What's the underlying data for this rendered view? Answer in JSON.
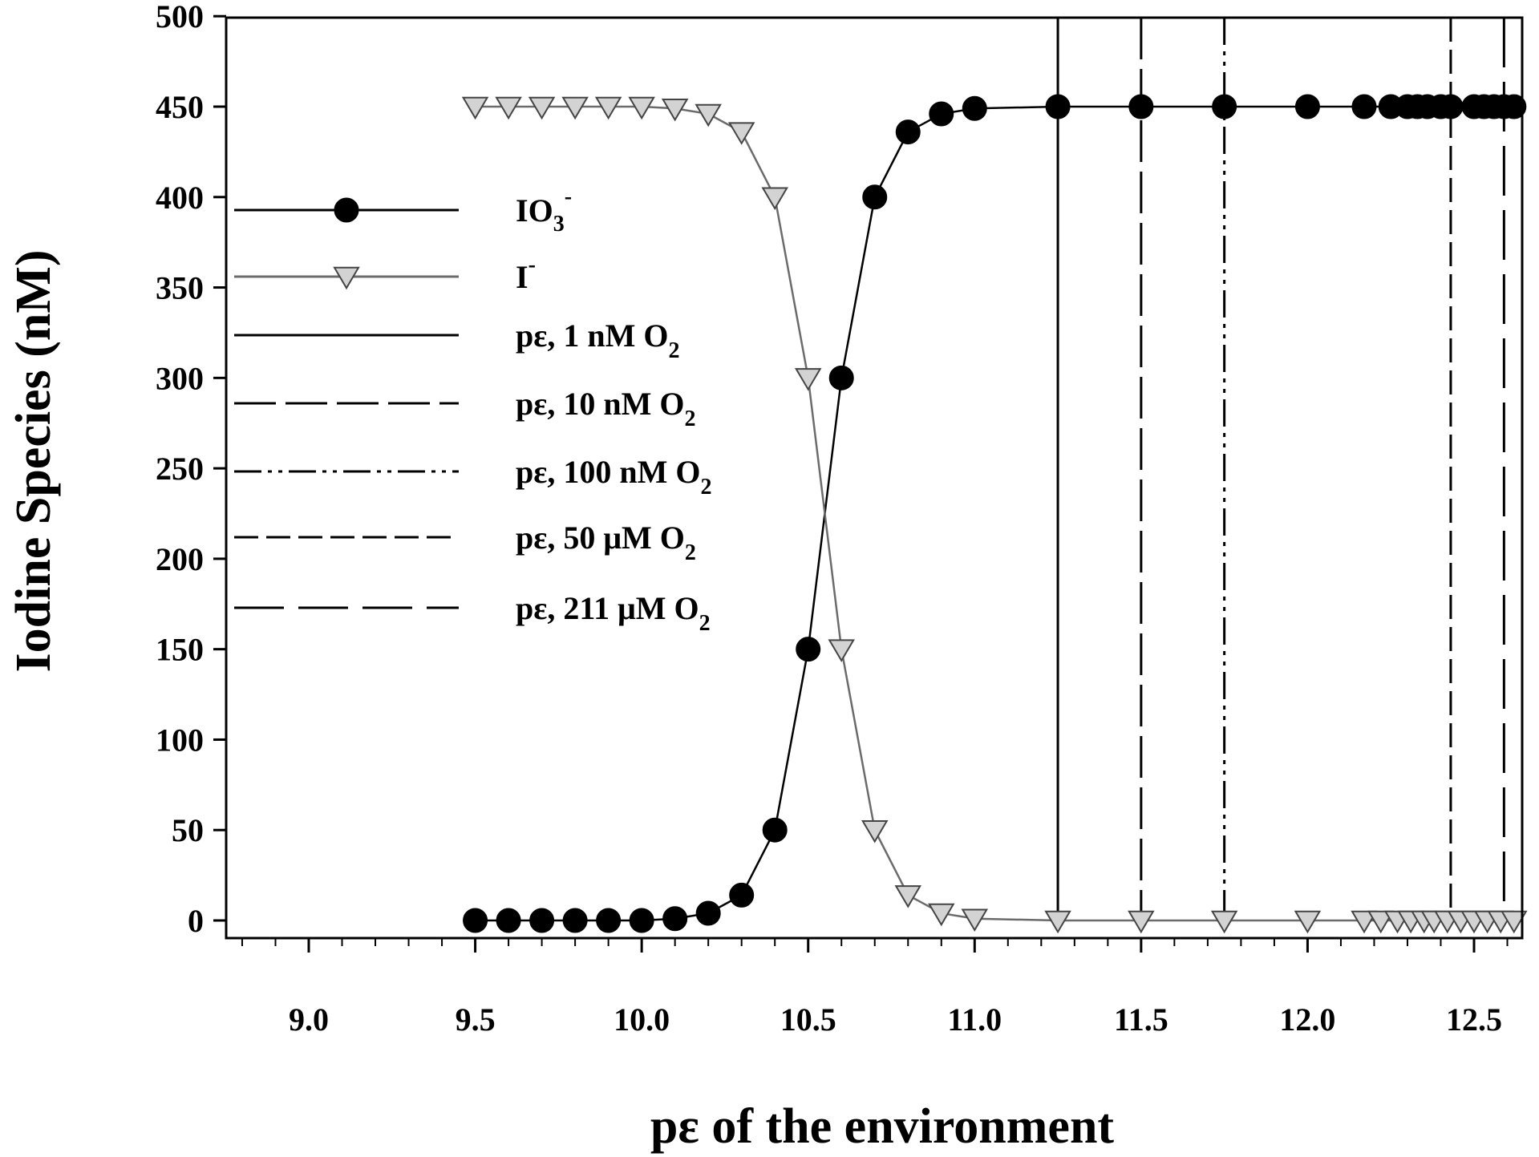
{
  "chart_data": {
    "type": "line",
    "title": "",
    "xlabel": "pε of the environment",
    "ylabel": "Iodine Species (nM)",
    "xlim": [
      8.8,
      12.75
    ],
    "ylim": [
      0,
      500
    ],
    "x_ticks": [
      9.0,
      9.5,
      10.0,
      10.5,
      11.0,
      11.5,
      12.0,
      12.5
    ],
    "x_tick_labels": [
      "9.0",
      "9.5",
      "10.0",
      "10.5",
      "11.0",
      "11.5",
      "12.0",
      "12.5"
    ],
    "y_ticks": [
      0,
      50,
      100,
      150,
      200,
      250,
      300,
      350,
      400,
      450,
      500
    ],
    "y_tick_labels": [
      "0",
      "50",
      "100",
      "150",
      "200",
      "250",
      "300",
      "350",
      "400",
      "450",
      "500"
    ],
    "grid": false,
    "legend_position": "left",
    "series": [
      {
        "name": "IO3-",
        "legend_main": "IO",
        "legend_sub": "3",
        "legend_sup": "-",
        "marker": "circle",
        "color": "#000000",
        "points": [
          [
            9.5,
            0
          ],
          [
            9.6,
            0
          ],
          [
            9.7,
            0
          ],
          [
            9.8,
            0
          ],
          [
            9.9,
            0
          ],
          [
            10.0,
            0
          ],
          [
            10.1,
            1
          ],
          [
            10.2,
            4
          ],
          [
            10.3,
            14
          ],
          [
            10.4,
            50
          ],
          [
            10.5,
            150
          ],
          [
            10.6,
            300
          ],
          [
            10.7,
            400
          ],
          [
            10.8,
            436
          ],
          [
            10.9,
            446
          ],
          [
            11.0,
            449
          ],
          [
            11.25,
            450
          ],
          [
            11.5,
            450
          ],
          [
            11.75,
            450
          ],
          [
            12.0,
            450
          ],
          [
            12.17,
            450
          ],
          [
            12.25,
            450
          ],
          [
            12.3,
            450
          ],
          [
            12.33,
            450
          ],
          [
            12.36,
            450
          ],
          [
            12.4,
            450
          ],
          [
            12.43,
            450
          ],
          [
            12.5,
            450
          ],
          [
            12.53,
            450
          ],
          [
            12.56,
            450
          ],
          [
            12.59,
            450
          ],
          [
            12.62,
            450
          ]
        ]
      },
      {
        "name": "I-",
        "legend_main": "I",
        "legend_sub": "",
        "legend_sup": "-",
        "marker": "triangle-down",
        "color": "#d3d3d3",
        "line_color": "#6b6b6b",
        "points": [
          [
            9.5,
            450
          ],
          [
            9.6,
            450
          ],
          [
            9.7,
            450
          ],
          [
            9.8,
            450
          ],
          [
            9.9,
            450
          ],
          [
            10.0,
            450
          ],
          [
            10.1,
            449
          ],
          [
            10.2,
            446
          ],
          [
            10.3,
            436
          ],
          [
            10.4,
            400
          ],
          [
            10.5,
            300
          ],
          [
            10.6,
            150
          ],
          [
            10.7,
            50
          ],
          [
            10.8,
            14
          ],
          [
            10.9,
            4
          ],
          [
            11.0,
            1
          ],
          [
            11.25,
            0
          ],
          [
            11.5,
            0
          ],
          [
            11.75,
            0
          ],
          [
            12.0,
            0
          ],
          [
            12.17,
            0
          ],
          [
            12.22,
            0
          ],
          [
            12.27,
            0
          ],
          [
            12.31,
            0
          ],
          [
            12.35,
            0
          ],
          [
            12.38,
            0
          ],
          [
            12.42,
            0
          ],
          [
            12.46,
            0
          ],
          [
            12.5,
            0
          ],
          [
            12.54,
            0
          ],
          [
            12.58,
            0
          ],
          [
            12.62,
            0
          ]
        ]
      }
    ],
    "vertical_lines": [
      {
        "name": "pε, 1 nM O2",
        "legend_main": "pε, 1 nM O",
        "legend_sub": "2",
        "x": 11.25,
        "dash": "solid"
      },
      {
        "name": "pε, 10 nM O2",
        "legend_main": "pε, 10 nM O",
        "legend_sub": "2",
        "x": 11.5,
        "dash": "longdash"
      },
      {
        "name": "pε, 100 nM O2",
        "legend_main": "pε, 100 nM O",
        "legend_sub": "2",
        "x": 11.75,
        "dash": "dashdotdot"
      },
      {
        "name": "pε, 50 μM O2",
        "legend_main": "pε, 50 μM O",
        "legend_sub": "2",
        "x": 12.43,
        "dash": "dash"
      },
      {
        "name": "pε, 211 μM O2",
        "legend_main": "pε, 211 μM O",
        "legend_sub": "2",
        "x": 12.59,
        "dash": "longdash2"
      }
    ]
  }
}
